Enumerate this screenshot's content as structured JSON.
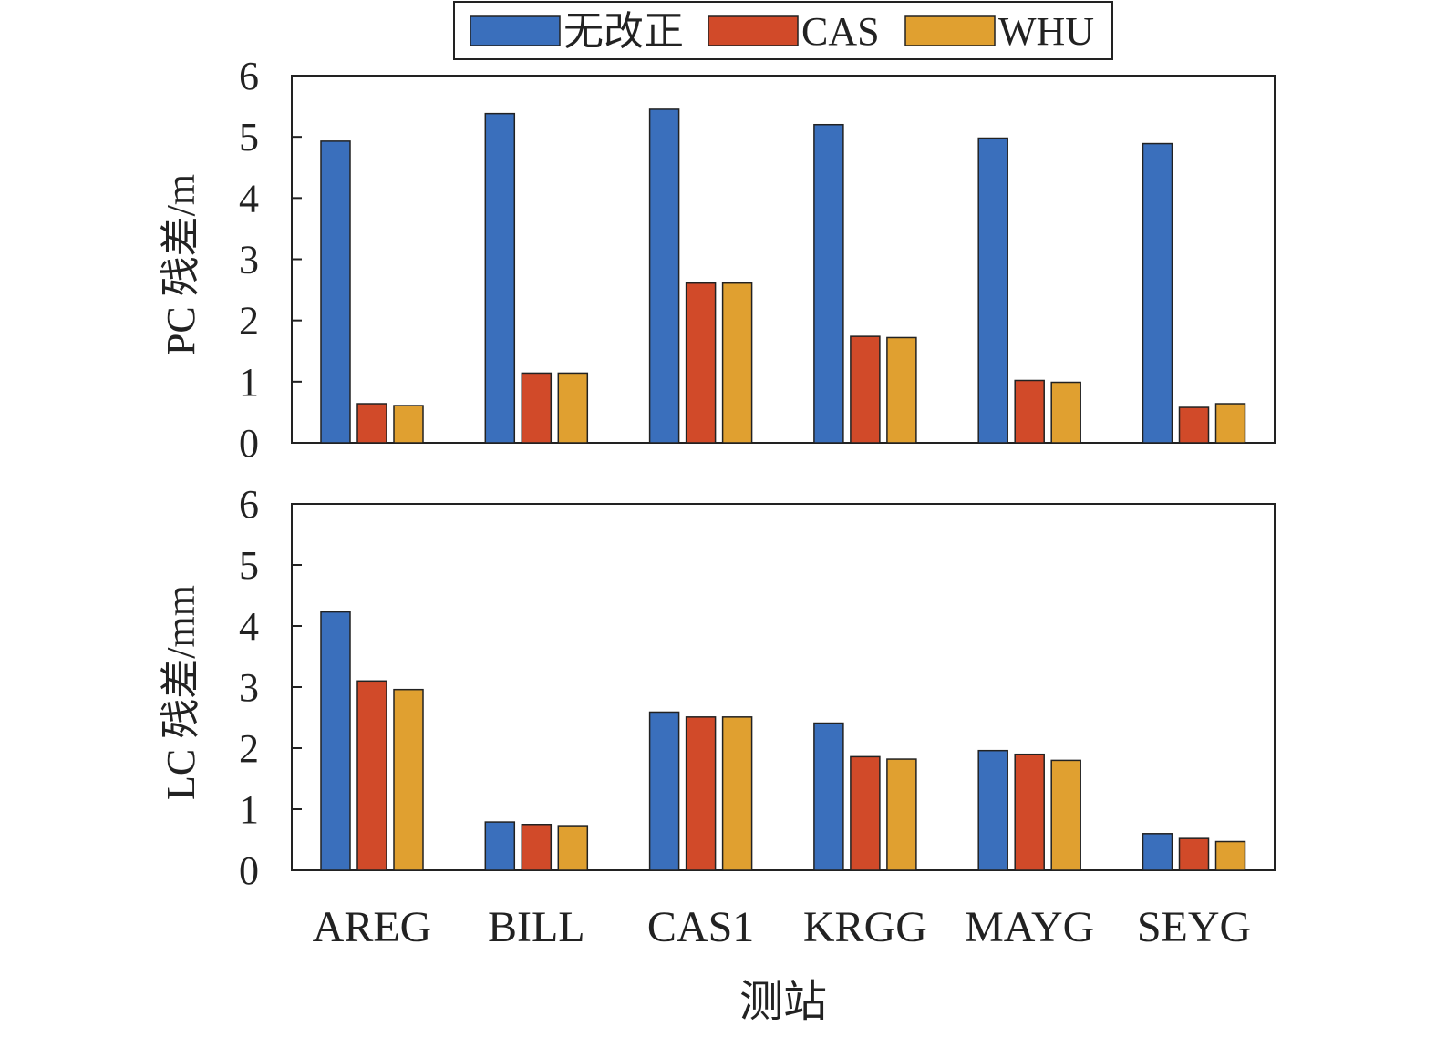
{
  "chart_data": [
    {
      "type": "bar",
      "ylabel": "PC 残差/m",
      "ylim": [
        0,
        6
      ],
      "yticks": [
        "0",
        "1",
        "2",
        "3",
        "4",
        "5",
        "6"
      ],
      "categories": [
        "AREG",
        "BILL",
        "CAS1",
        "KRGG",
        "MAYG",
        "SEYG"
      ],
      "series": [
        {
          "name": "无改正",
          "color": "#3a6fbc",
          "values": [
            4.93,
            5.38,
            5.45,
            5.2,
            4.98,
            4.89
          ]
        },
        {
          "name": "CAS",
          "color": "#d14a29",
          "values": [
            0.64,
            1.14,
            2.61,
            1.74,
            1.02,
            0.58
          ]
        },
        {
          "name": "WHU",
          "color": "#e0a030",
          "values": [
            0.61,
            1.14,
            2.61,
            1.72,
            0.99,
            0.64
          ]
        }
      ],
      "grid": false
    },
    {
      "type": "bar",
      "ylabel": "LC 残差/mm",
      "xlabel": "测站",
      "ylim": [
        0,
        6
      ],
      "yticks": [
        "0",
        "1",
        "2",
        "3",
        "4",
        "5",
        "6"
      ],
      "categories": [
        "AREG",
        "BILL",
        "CAS1",
        "KRGG",
        "MAYG",
        "SEYG"
      ],
      "series": [
        {
          "name": "无改正",
          "color": "#3a6fbc",
          "values": [
            4.23,
            0.79,
            2.59,
            2.41,
            1.96,
            0.6
          ]
        },
        {
          "name": "CAS",
          "color": "#d14a29",
          "values": [
            3.1,
            0.75,
            2.51,
            1.86,
            1.9,
            0.52
          ]
        },
        {
          "name": "WHU",
          "color": "#e0a030",
          "values": [
            2.96,
            0.73,
            2.51,
            1.82,
            1.8,
            0.47
          ]
        }
      ],
      "grid": false
    }
  ],
  "legend": {
    "position": "top-center",
    "items": [
      "无改正",
      "CAS",
      "WHU"
    ]
  }
}
